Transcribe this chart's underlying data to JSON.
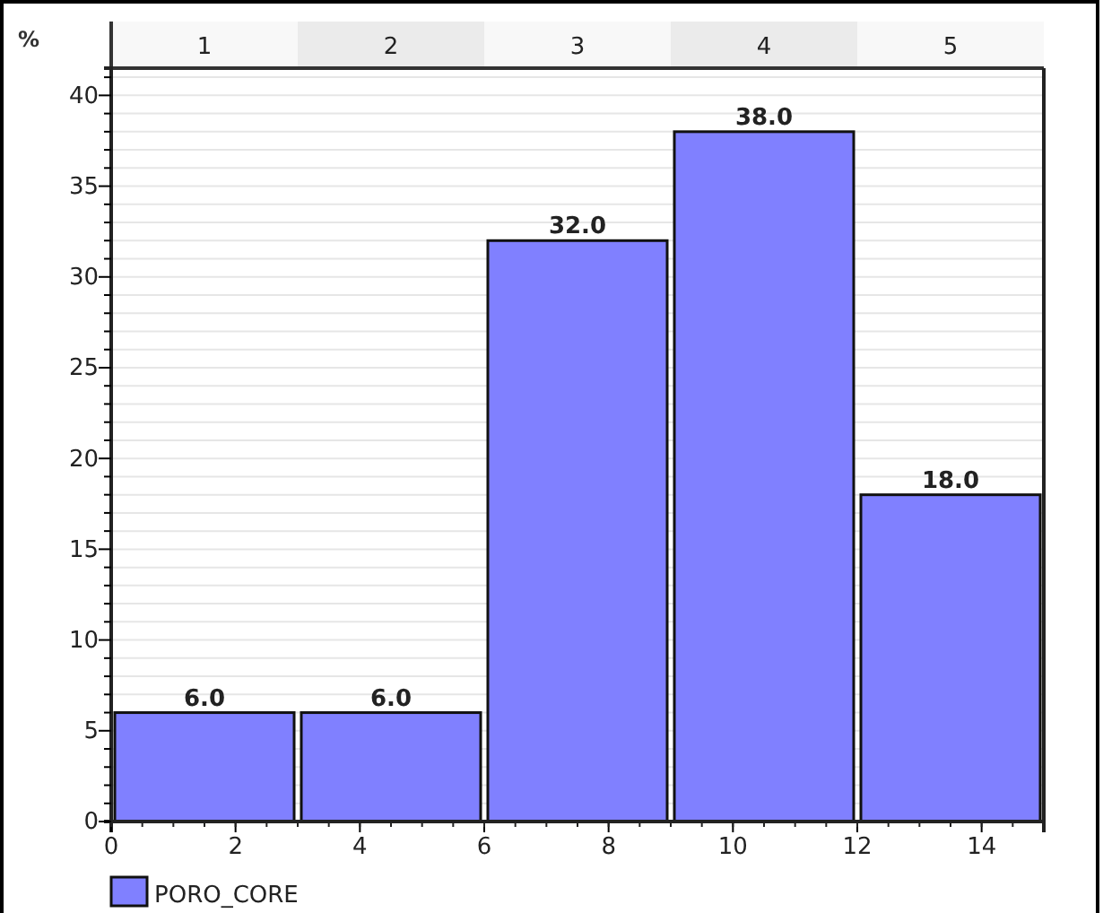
{
  "chart_data": {
    "type": "histogram",
    "ylabel": "%",
    "bins": [
      0,
      3,
      6,
      9,
      12,
      15
    ],
    "series": [
      {
        "name": "PORO_CORE",
        "color": "#8080ff",
        "values": [
          6,
          6,
          32,
          38,
          18
        ],
        "value_labels": [
          "6.0",
          "6.0",
          "32.0",
          "38.0",
          "18.0"
        ]
      }
    ],
    "xlim": [
      0,
      15
    ],
    "xticks": [
      0,
      2,
      4,
      6,
      8,
      10,
      12,
      14
    ],
    "x2lim": [
      0.5,
      5.5
    ],
    "x2ticks": [
      1,
      2,
      3,
      4,
      5
    ],
    "ylim": [
      0,
      41.5
    ],
    "yticks": [
      0,
      {
        "value": 1,
        "label": null
      },
      {
        "value": 2,
        "label": null
      },
      {
        "value": 3,
        "label": null
      },
      {
        "value": 4,
        "label": null
      },
      5,
      {
        "value": 6,
        "label": null
      },
      {
        "value": 7,
        "label": null
      },
      {
        "value": 8,
        "label": null
      },
      {
        "value": 9,
        "label": null
      },
      10,
      {
        "value": 11,
        "label": null
      },
      {
        "value": 12,
        "label": null
      },
      {
        "value": 13,
        "label": null
      },
      {
        "value": 14,
        "label": null
      },
      15,
      {
        "value": 16,
        "label": null
      },
      {
        "value": 17,
        "label": null
      },
      {
        "value": 18,
        "label": null
      },
      {
        "value": 19,
        "label": null
      },
      20,
      {
        "value": 21,
        "label": null
      },
      {
        "value": 22,
        "label": null
      },
      {
        "value": 23,
        "label": null
      },
      {
        "value": 24,
        "label": null
      },
      25,
      {
        "value": 26,
        "label": null
      },
      {
        "value": 27,
        "label": null
      },
      {
        "value": 28,
        "label": null
      },
      {
        "value": 29,
        "label": null
      },
      30,
      {
        "value": 31,
        "label": null
      },
      {
        "value": 32,
        "label": null
      },
      {
        "value": 33,
        "label": null
      },
      {
        "value": 34,
        "label": null
      },
      35,
      {
        "value": 36,
        "label": null
      },
      {
        "value": 37,
        "label": null
      },
      {
        "value": 38,
        "label": null
      },
      {
        "value": 39,
        "label": null
      },
      40,
      {
        "value": 41,
        "label": null
      }
    ],
    "grid": "y",
    "legend": "bottom left"
  }
}
